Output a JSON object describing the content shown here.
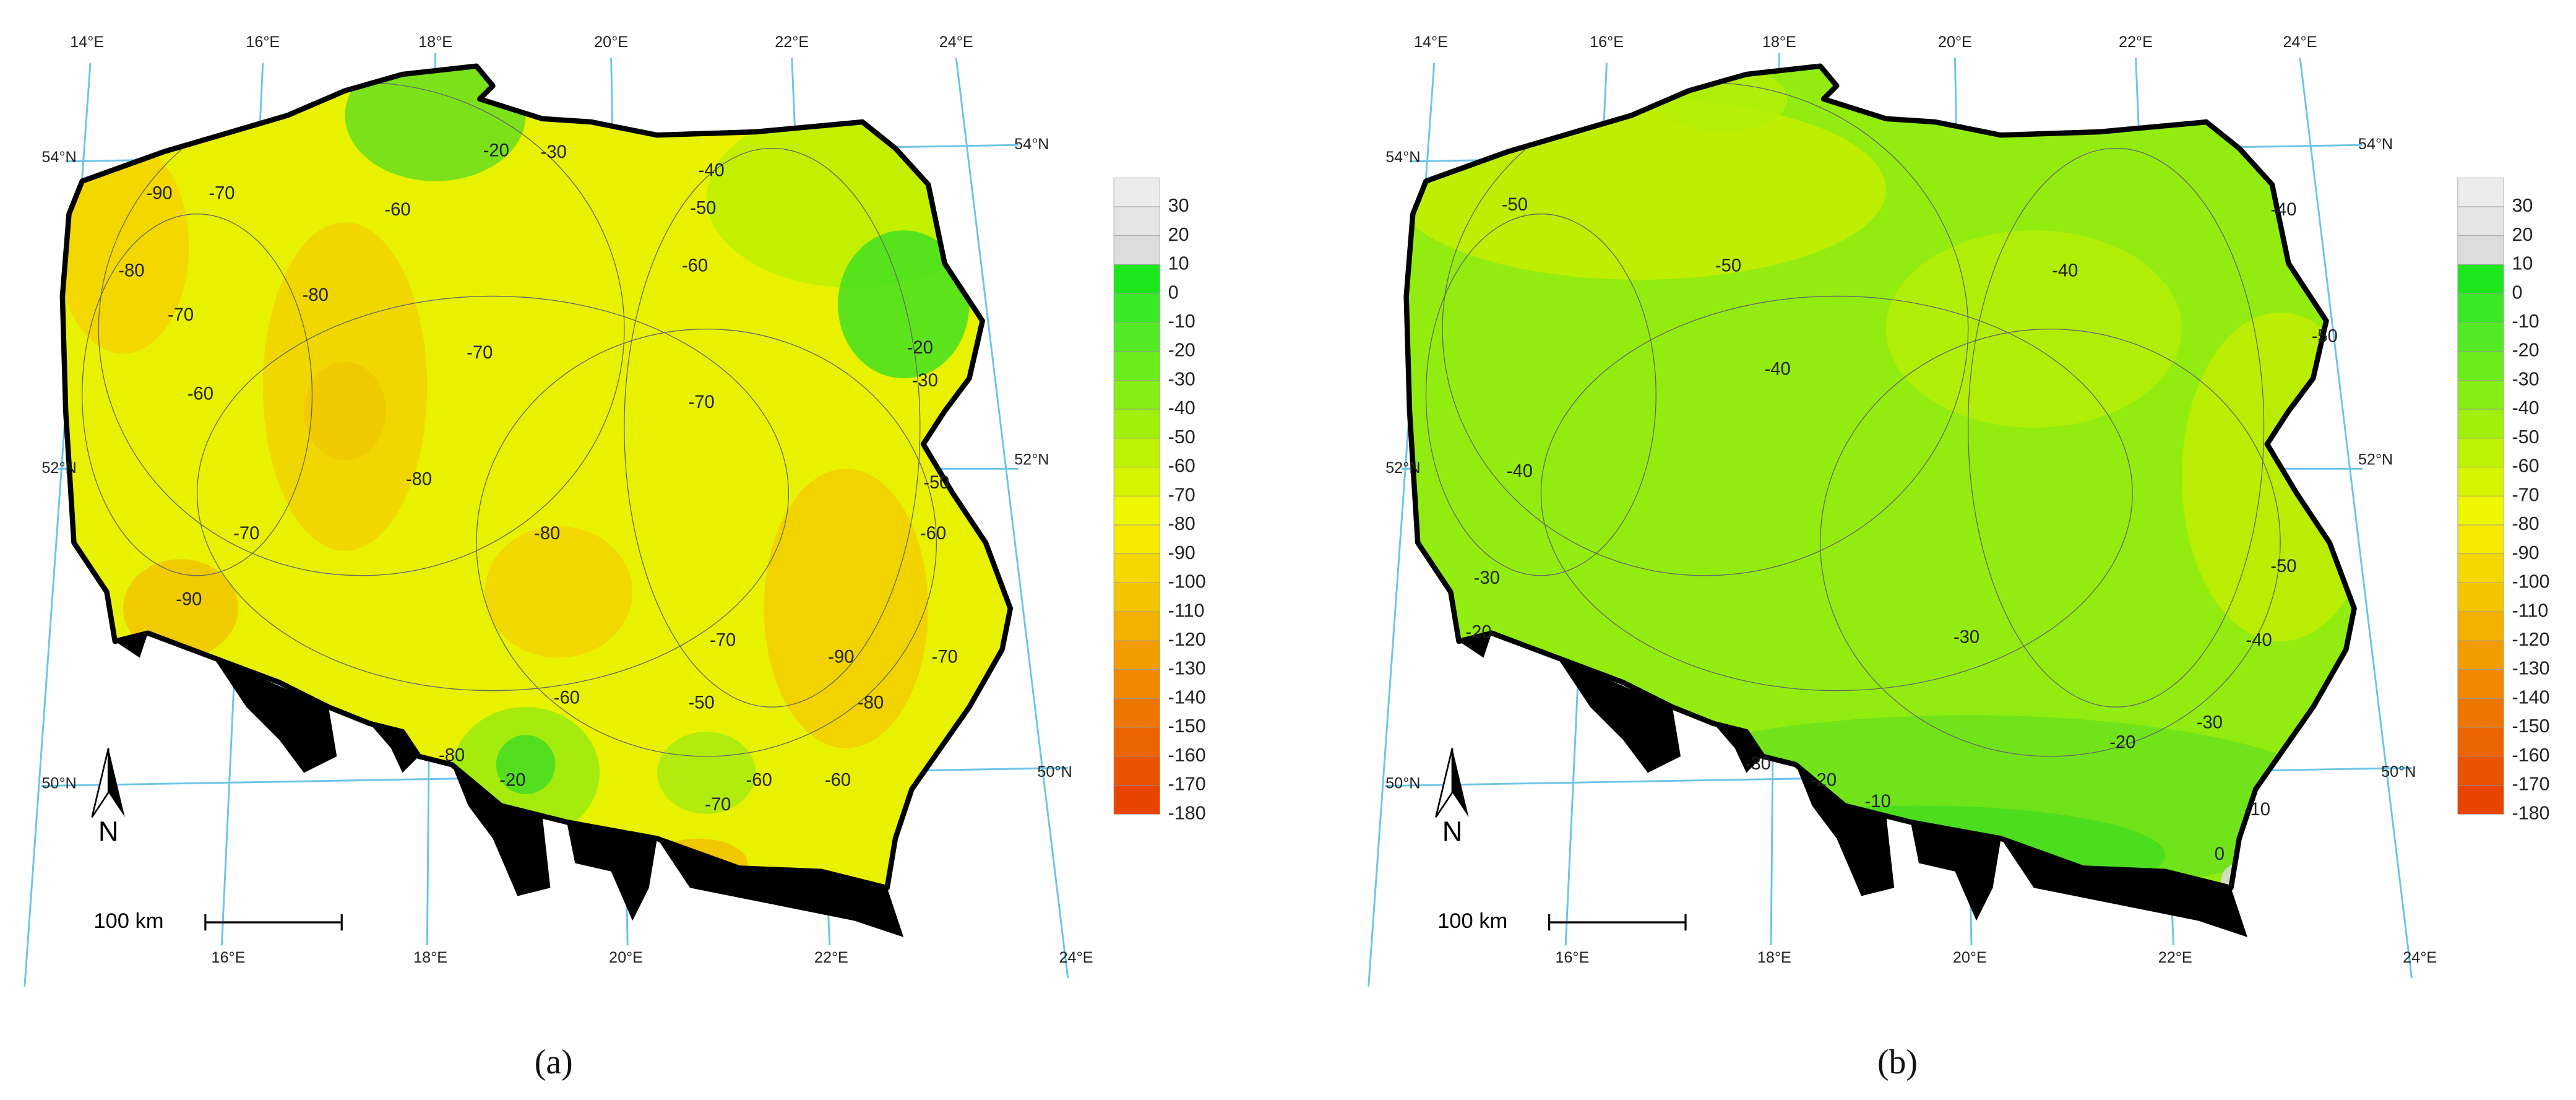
{
  "panels": [
    {
      "label": "(a)",
      "lon_labels_top": [
        "14°E",
        "16°E",
        "18°E",
        "20°E",
        "22°E",
        "24°E"
      ],
      "lon_labels_bottom": [
        "16°E",
        "18°E",
        "20°E",
        "22°E",
        "24°E"
      ],
      "lat_labels_left": [
        "54°N",
        "52°N",
        "50°N"
      ],
      "lat_labels_right": [
        "54°N",
        "52°N",
        "50°N"
      ],
      "north": "N",
      "scale": "100 km",
      "contour_labels": [
        -90,
        -70,
        -60,
        -20,
        -30,
        -40,
        -50,
        -60,
        -80,
        -70,
        -80,
        -70,
        -60,
        -20,
        -30,
        -70,
        -80,
        -50,
        -60,
        -70,
        -80,
        -90,
        -70,
        -90,
        -70,
        -60,
        -50,
        -80,
        -80,
        -20,
        -60,
        -70,
        -60
      ],
      "legend": {
        "ticks": [
          30,
          20,
          10,
          0,
          -10,
          -20,
          -30,
          -40,
          -50,
          -60,
          -70,
          -80,
          -90,
          -100,
          -110,
          -120,
          -130,
          -140,
          -150,
          -160,
          -170,
          -180
        ]
      }
    },
    {
      "label": "(b)",
      "lon_labels_top": [
        "14°E",
        "16°E",
        "18°E",
        "20°E",
        "22°E",
        "24°E"
      ],
      "lon_labels_bottom": [
        "16°E",
        "18°E",
        "20°E",
        "22°E",
        "24°E"
      ],
      "lat_labels_left": [
        "54°N",
        "52°N",
        "50°N"
      ],
      "lat_labels_right": [
        "54°N",
        "52°N",
        "50°N"
      ],
      "north": "N",
      "scale": "100 km",
      "contour_labels": [
        -50,
        -50,
        -40,
        -40,
        -50,
        -40,
        -40,
        -50,
        -30,
        -40,
        -20,
        -30,
        -30,
        -30,
        -20,
        -10,
        -20,
        -10,
        0
      ],
      "legend": {
        "ticks": [
          30,
          20,
          10,
          0,
          -10,
          -20,
          -30,
          -40,
          -50,
          -60,
          -70,
          -80,
          -90,
          -100,
          -110,
          -120,
          -130,
          -140,
          -150,
          -160,
          -170,
          -180
        ]
      }
    }
  ]
}
